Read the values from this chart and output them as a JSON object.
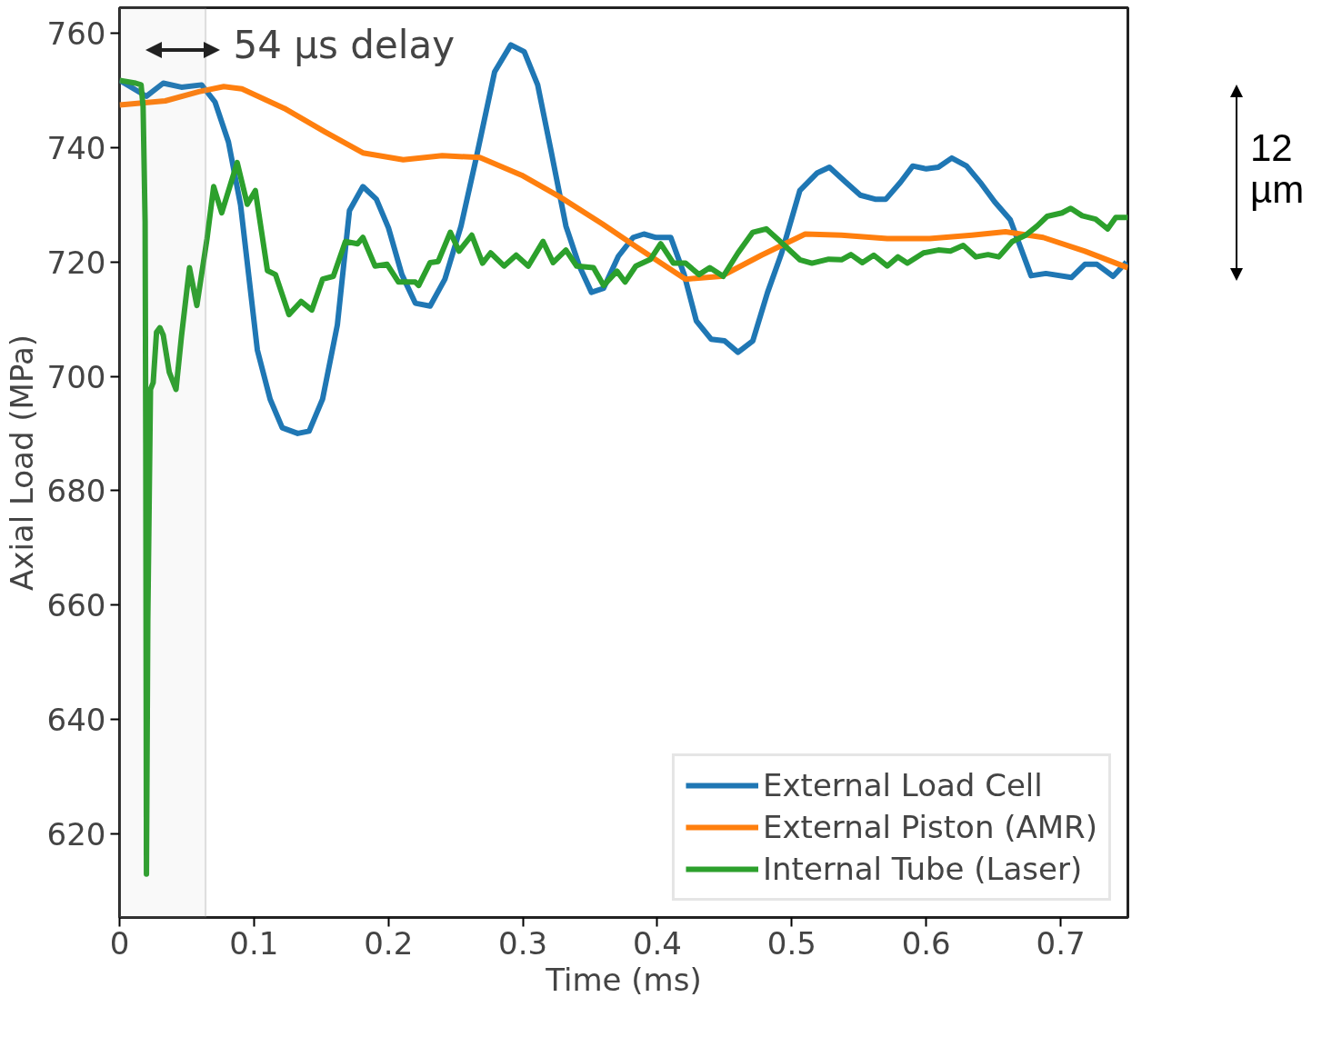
{
  "chart_data": {
    "type": "line",
    "xlabel": "Time (ms)",
    "ylabel": "Axial Load (MPa)",
    "xlim": [
      0,
      0.75
    ],
    "ylim": [
      605.3,
      764.5
    ],
    "xticks": [
      0,
      0.1,
      0.2,
      0.3,
      0.4,
      0.5,
      0.6,
      0.7
    ],
    "yticks": [
      620,
      640,
      660,
      680,
      700,
      720,
      740,
      760
    ],
    "legend": "bottom right",
    "grid": false,
    "annotations": [
      "54 µs delay",
      "12 µm"
    ],
    "bands": [
      {
        "axis": "x",
        "from": 0,
        "to": 0.064,
        "color": "#999999"
      }
    ],
    "series": [
      {
        "name": "External Load Cell",
        "color": "#1f77b4",
        "x": [
          0,
          0.02,
          0.0325,
          0.046,
          0.061,
          0.071,
          0.081,
          0.09,
          0.1025,
          0.112,
          0.121,
          0.1325,
          0.141,
          0.151,
          0.162,
          0.171,
          0.181,
          0.191,
          0.2,
          0.21,
          0.22,
          0.231,
          0.242,
          0.254,
          0.265,
          0.279,
          0.291,
          0.301,
          0.311,
          0.321,
          0.332,
          0.342,
          0.351,
          0.36,
          0.371,
          0.382,
          0.39,
          0.399,
          0.41,
          0.42,
          0.429,
          0.44,
          0.45,
          0.46,
          0.471,
          0.482,
          0.4925,
          0.506,
          0.519,
          0.528,
          0.54,
          0.551,
          0.562,
          0.57,
          0.581,
          0.59,
          0.6,
          0.609,
          0.619,
          0.63,
          0.641,
          0.651,
          0.6625,
          0.678,
          0.689,
          0.708,
          0.718,
          0.727,
          0.739,
          0.749
        ],
        "values": [
          751.8,
          749,
          751.3,
          750.6,
          751,
          748,
          741,
          730,
          704.6,
          696,
          691,
          690,
          690.4,
          696,
          709,
          729,
          733.2,
          731,
          726,
          717.8,
          712.8,
          712.3,
          717,
          726.3,
          737.9,
          753.3,
          758,
          756.8,
          751,
          739.4,
          726.3,
          719.3,
          714.7,
          715.4,
          721,
          724.3,
          724.9,
          724.3,
          724.3,
          717.8,
          709.7,
          706.5,
          706.2,
          704.2,
          706.2,
          714.7,
          721.6,
          732.5,
          735.6,
          736.6,
          734,
          731.7,
          731,
          731,
          734,
          736.8,
          736.3,
          736.6,
          738.2,
          736.8,
          733.7,
          730.5,
          727.4,
          717.6,
          718,
          717.3,
          719.6,
          719.6,
          717.5,
          720
        ]
      },
      {
        "name": "External Piston (AMR)",
        "color": "#ff7f0e",
        "x": [
          0,
          0.034,
          0.059,
          0.0775,
          0.091,
          0.1225,
          0.1525,
          0.181,
          0.211,
          0.24,
          0.268,
          0.299,
          0.3275,
          0.359,
          0.384,
          0.421,
          0.4475,
          0.4775,
          0.51,
          0.537,
          0.571,
          0.6025,
          0.634,
          0.659,
          0.687,
          0.718,
          0.75
        ],
        "values": [
          747.5,
          748.2,
          749.8,
          750.7,
          750.3,
          746.9,
          742.8,
          739.1,
          737.9,
          738.6,
          738.3,
          735.2,
          731.4,
          726.7,
          722.7,
          717,
          717.5,
          721.2,
          724.9,
          724.7,
          724.1,
          724.1,
          724.7,
          725.3,
          724.3,
          721.9,
          719
        ]
      },
      {
        "name": "Internal Tube (Laser)",
        "color": "#2ca02c",
        "x": [
          0,
          0.012,
          0.016,
          0.0175,
          0.019,
          0.0195,
          0.02,
          0.021,
          0.023,
          0.025,
          0.0275,
          0.03,
          0.0325,
          0.037,
          0.042,
          0.046,
          0.052,
          0.0575,
          0.065,
          0.07,
          0.076,
          0.0875,
          0.095,
          0.101,
          0.11,
          0.116,
          0.126,
          0.135,
          0.143,
          0.151,
          0.159,
          0.168,
          0.177,
          0.181,
          0.19,
          0.199,
          0.2075,
          0.22,
          0.2225,
          0.231,
          0.237,
          0.246,
          0.2525,
          0.262,
          0.27,
          0.276,
          0.286,
          0.295,
          0.304,
          0.315,
          0.3225,
          0.332,
          0.34,
          0.3525,
          0.36,
          0.37,
          0.376,
          0.384,
          0.395,
          0.4025,
          0.412,
          0.421,
          0.431,
          0.439,
          0.449,
          0.46,
          0.471,
          0.481,
          0.49,
          0.506,
          0.515,
          0.5275,
          0.537,
          0.544,
          0.5525,
          0.561,
          0.571,
          0.579,
          0.586,
          0.598,
          0.609,
          0.618,
          0.6275,
          0.637,
          0.646,
          0.654,
          0.664,
          0.674,
          0.6825,
          0.69,
          0.701,
          0.7075,
          0.716,
          0.726,
          0.735,
          0.741,
          0.75
        ],
        "values": [
          751.8,
          751.3,
          751,
          747.2,
          727,
          688.4,
          612.9,
          657.4,
          697.7,
          698.9,
          707.7,
          708.5,
          707.2,
          700.7,
          697.7,
          706.9,
          719,
          712.4,
          724,
          733.2,
          728.6,
          737.4,
          730.1,
          732.5,
          718.5,
          717.8,
          710.8,
          713.1,
          711.6,
          717,
          717.5,
          723.6,
          723.2,
          724.3,
          719.3,
          719.6,
          716.5,
          716.5,
          715.9,
          719.9,
          720.1,
          725.2,
          721.9,
          724.7,
          719.8,
          721.6,
          719.3,
          721.2,
          719.3,
          723.6,
          719.9,
          722.1,
          719.3,
          719,
          715.9,
          718.4,
          716.5,
          719.3,
          720.5,
          723.2,
          719.8,
          719.8,
          717.8,
          719,
          717.5,
          721.6,
          725.2,
          725.8,
          723.9,
          720.4,
          719.8,
          720.5,
          720.4,
          721.3,
          719.9,
          721.2,
          719.3,
          720.9,
          719.8,
          721.6,
          722.1,
          721.9,
          722.9,
          720.9,
          721.3,
          720.9,
          723.6,
          724.7,
          726.3,
          728,
          728.6,
          729.4,
          728.1,
          727.5,
          725.8,
          727.8,
          727.8
        ]
      }
    ]
  }
}
